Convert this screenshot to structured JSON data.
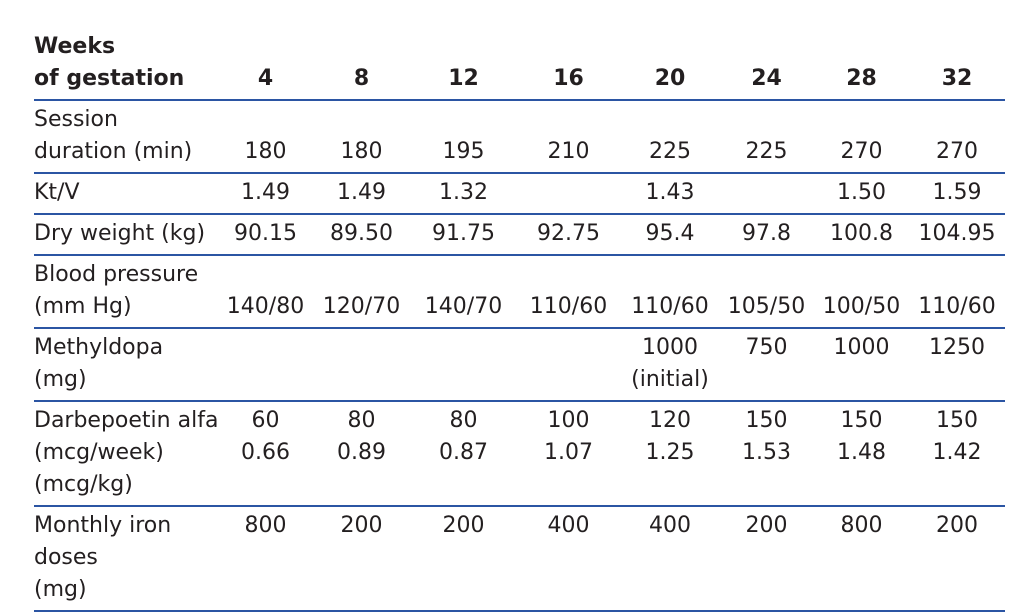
{
  "table": {
    "header": {
      "label": [
        "Weeks",
        "of gestation"
      ],
      "columns": [
        "4",
        "8",
        "12",
        "16",
        "20",
        "24",
        "28",
        "32"
      ]
    },
    "rows": [
      {
        "label": [
          "Session",
          "duration (min)"
        ],
        "cells": [
          [
            "180"
          ],
          [
            "180"
          ],
          [
            "195"
          ],
          [
            "210"
          ],
          [
            "225"
          ],
          [
            "225"
          ],
          [
            "270"
          ],
          [
            "270"
          ]
        ]
      },
      {
        "label": [
          "Kt/V"
        ],
        "cells": [
          [
            "1.49"
          ],
          [
            "1.49"
          ],
          [
            "1.32"
          ],
          [],
          [
            "1.43"
          ],
          [],
          [
            "1.50"
          ],
          [
            "1.59"
          ]
        ]
      },
      {
        "label": [
          "Dry weight (kg)"
        ],
        "cells": [
          [
            "90.15"
          ],
          [
            "89.50"
          ],
          [
            "91.75"
          ],
          [
            "92.75"
          ],
          [
            "95.4"
          ],
          [
            "97.8"
          ],
          [
            "100.8"
          ],
          [
            "104.95"
          ]
        ]
      },
      {
        "label": [
          "Blood pressure",
          "(mm Hg)"
        ],
        "cells": [
          [
            "140/80"
          ],
          [
            "120/70"
          ],
          [
            "140/70"
          ],
          [
            "110/60"
          ],
          [
            "110/60"
          ],
          [
            "105/50"
          ],
          [
            "100/50"
          ],
          [
            "110/60"
          ]
        ]
      },
      {
        "label": [
          "Methyldopa",
          "(mg)"
        ],
        "cells": [
          [],
          [],
          [],
          [],
          [
            "1000",
            "(initial)"
          ],
          [
            "750"
          ],
          [
            "1000"
          ],
          [
            "1250"
          ]
        ]
      },
      {
        "label": [
          "Darbepoetin alfa",
          "(mcg/week)",
          "(mcg/kg)"
        ],
        "cells": [
          [
            "60",
            "0.66"
          ],
          [
            "80",
            "0.89"
          ],
          [
            "80",
            "0.87"
          ],
          [
            "100",
            "1.07"
          ],
          [
            "120",
            "1.25"
          ],
          [
            "150",
            "1.53"
          ],
          [
            "150",
            "1.48"
          ],
          [
            "150",
            "1.42"
          ]
        ]
      },
      {
        "label": [
          "Monthly iron",
          "doses",
          "(mg)"
        ],
        "cells": [
          [
            "800"
          ],
          [
            "200"
          ],
          [
            "200"
          ],
          [
            "400"
          ],
          [
            "400"
          ],
          [
            "200"
          ],
          [
            "800"
          ],
          [
            "200"
          ]
        ]
      }
    ]
  }
}
